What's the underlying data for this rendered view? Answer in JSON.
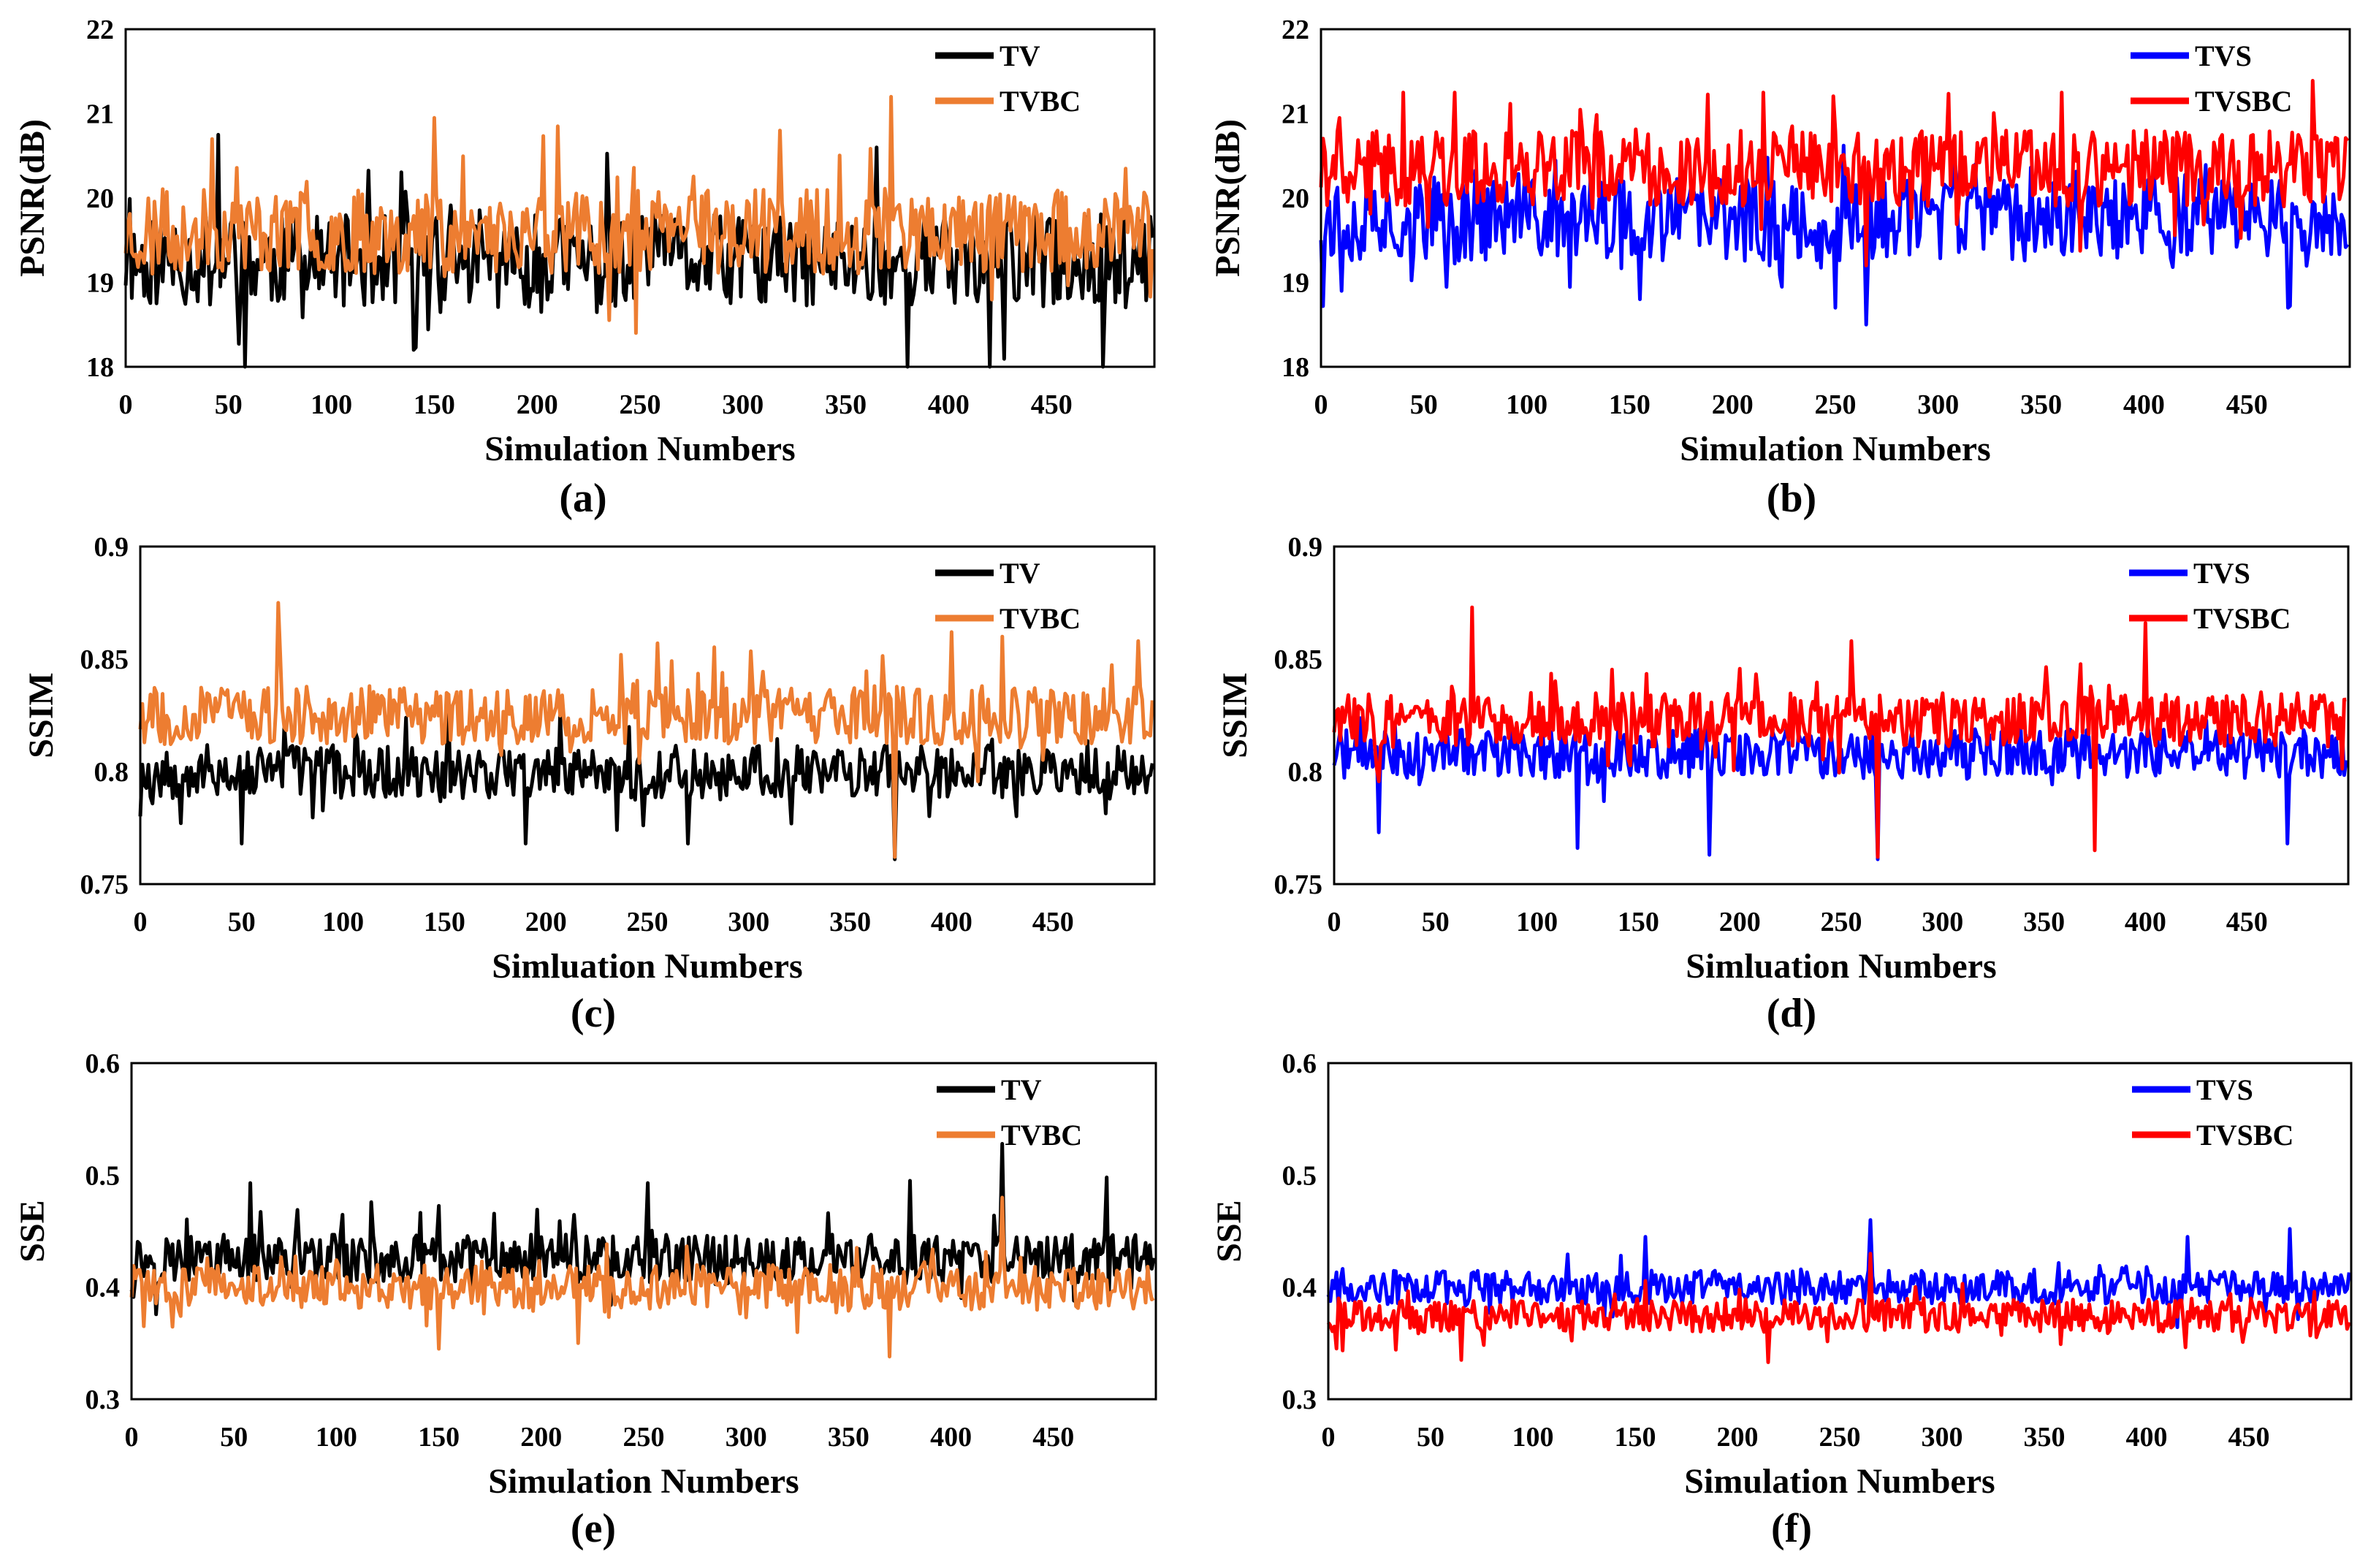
{
  "chart_data": [
    {
      "type": "line",
      "panel": "(a)",
      "xlabel": "Simulation  Numbers",
      "ylabel": "PSNR(dB)",
      "xlim": [
        0,
        500
      ],
      "ylim": [
        18,
        22
      ],
      "xticks": [
        0,
        50,
        100,
        150,
        200,
        250,
        300,
        350,
        400,
        450
      ],
      "yticks": [
        "18",
        "19",
        "20",
        "21",
        "22"
      ],
      "legend_position": "top-right",
      "grid": false,
      "series": [
        {
          "name": "TV",
          "color": "#000000",
          "base": 19.25,
          "amp": 0.55,
          "seed": 11,
          "spikes": [
            [
              45,
              20.75
            ],
            [
              58,
              18.0
            ],
            [
              140,
              18.2
            ],
            [
              365,
              20.6
            ],
            [
              380,
              18.0
            ],
            [
              420,
              18.0
            ],
            [
              475,
              18.0
            ]
          ]
        },
        {
          "name": "TVBC",
          "color": "#ED7D31",
          "base": 19.6,
          "amp": 0.5,
          "seed": 23,
          "spikes": [
            [
              42,
              20.7
            ],
            [
              150,
              20.95
            ],
            [
              210,
              20.85
            ],
            [
              372,
              21.2
            ],
            [
              318,
              20.8
            ],
            [
              248,
              18.4
            ]
          ]
        }
      ]
    },
    {
      "type": "line",
      "panel": "(b)",
      "xlabel": "Simulation  Numbers",
      "ylabel": "PSNR(dB)",
      "xlim": [
        0,
        500
      ],
      "ylim": [
        18,
        22
      ],
      "xticks": [
        0,
        50,
        100,
        150,
        200,
        250,
        300,
        350,
        400,
        450
      ],
      "yticks": [
        "18",
        "19",
        "20",
        "21",
        "22"
      ],
      "legend_position": "top-right",
      "grid": false,
      "series": [
        {
          "name": "TVS",
          "color": "#0000FF",
          "base": 19.75,
          "amp": 0.5,
          "seed": 37,
          "spikes": [
            [
              155,
              18.8
            ],
            [
              250,
              18.7
            ],
            [
              265,
              18.5
            ],
            [
              470,
              18.7
            ],
            [
              10,
              18.9
            ]
          ]
        },
        {
          "name": "TVSBC",
          "color": "#FF0000",
          "base": 20.35,
          "amp": 0.45,
          "seed": 41,
          "spikes": [
            [
              40,
              21.25
            ],
            [
              65,
              21.25
            ],
            [
              215,
              21.25
            ],
            [
              360,
              21.25
            ],
            [
              265,
              19.2
            ]
          ]
        }
      ]
    },
    {
      "type": "line",
      "panel": "(c)",
      "xlabel": "Simluation  Numbers",
      "ylabel": "SSIM",
      "xlim": [
        0,
        500
      ],
      "ylim": [
        0.75,
        0.9
      ],
      "xticks": [
        0,
        50,
        100,
        150,
        200,
        250,
        300,
        350,
        400,
        450
      ],
      "yticks": [
        "0.75",
        "0.8",
        "0.85",
        "0.9"
      ],
      "legend_position": "top-right",
      "grid": false,
      "series": [
        {
          "name": "TV",
          "color": "#000000",
          "base": 0.8,
          "amp": 0.012,
          "seed": 53,
          "spikes": [
            [
              50,
              0.768
            ],
            [
              270,
              0.768
            ],
            [
              372,
              0.761
            ],
            [
              190,
              0.768
            ],
            [
              235,
              0.774
            ]
          ]
        },
        {
          "name": "TVBC",
          "color": "#ED7D31",
          "base": 0.825,
          "amp": 0.013,
          "seed": 67,
          "spikes": [
            [
              68,
              0.875
            ],
            [
              255,
              0.857
            ],
            [
              400,
              0.862
            ],
            [
              425,
              0.86
            ],
            [
              492,
              0.858
            ],
            [
              372,
              0.762
            ]
          ]
        }
      ]
    },
    {
      "type": "line",
      "panel": "(d)",
      "xlabel": "Simluation  Numbers",
      "ylabel": "SSIM",
      "xlim": [
        0,
        500
      ],
      "ylim": [
        0.75,
        0.9
      ],
      "xticks": [
        0,
        50,
        100,
        150,
        200,
        250,
        300,
        350,
        400,
        450
      ],
      "yticks": [
        "0.75",
        "0.8",
        "0.85",
        "0.9"
      ],
      "legend_position": "top-right",
      "grid": false,
      "series": [
        {
          "name": "TVS",
          "color": "#0000FF",
          "base": 0.808,
          "amp": 0.011,
          "seed": 71,
          "spikes": [
            [
              185,
              0.763
            ],
            [
              268,
              0.761
            ],
            [
              470,
              0.768
            ],
            [
              22,
              0.773
            ],
            [
              120,
              0.766
            ]
          ]
        },
        {
          "name": "TVSBC",
          "color": "#FF0000",
          "base": 0.823,
          "amp": 0.012,
          "seed": 83,
          "spikes": [
            [
              68,
              0.873
            ],
            [
              400,
              0.866
            ],
            [
              255,
              0.858
            ],
            [
              375,
              0.765
            ],
            [
              268,
              0.762
            ]
          ]
        }
      ]
    },
    {
      "type": "line",
      "panel": "(e)",
      "xlabel": "Simulation  Numbers",
      "ylabel": "SSE",
      "xlim": [
        0,
        500
      ],
      "ylim": [
        0.3,
        0.6
      ],
      "xticks": [
        0,
        50,
        100,
        150,
        200,
        250,
        300,
        350,
        400,
        450
      ],
      "yticks": [
        "0.3",
        "0.4",
        "0.5",
        "0.6"
      ],
      "legend_position": "top-right",
      "grid": false,
      "series": [
        {
          "name": "TV",
          "color": "#000000",
          "base": 0.425,
          "amp": 0.022,
          "seed": 97,
          "spikes": [
            [
              58,
              0.493
            ],
            [
              252,
              0.493
            ],
            [
              425,
              0.528
            ],
            [
              380,
              0.495
            ],
            [
              476,
              0.498
            ]
          ]
        },
        {
          "name": "TVBC",
          "color": "#ED7D31",
          "base": 0.4,
          "amp": 0.02,
          "seed": 101,
          "spikes": [
            [
              370,
              0.338
            ],
            [
              150,
              0.345
            ],
            [
              218,
              0.35
            ],
            [
              425,
              0.48
            ]
          ]
        }
      ]
    },
    {
      "type": "line",
      "panel": "(f)",
      "xlabel": "Simulation  Numbers",
      "ylabel": "SSE",
      "xlim": [
        0,
        500
      ],
      "ylim": [
        0.3,
        0.6
      ],
      "xticks": [
        0,
        50,
        100,
        150,
        200,
        250,
        300,
        350,
        400,
        450
      ],
      "yticks": [
        "0.3",
        "0.4",
        "0.5",
        "0.6"
      ],
      "legend_position": "top-right",
      "grid": false,
      "series": [
        {
          "name": "TVS",
          "color": "#0000FF",
          "base": 0.4,
          "amp": 0.015,
          "seed": 107,
          "spikes": [
            [
              265,
              0.46
            ],
            [
              470,
              0.452
            ],
            [
              155,
              0.445
            ],
            [
              420,
              0.445
            ]
          ]
        },
        {
          "name": "TVSBC",
          "color": "#FF0000",
          "base": 0.375,
          "amp": 0.015,
          "seed": 113,
          "spikes": [
            [
              215,
              0.333
            ],
            [
              65,
              0.335
            ],
            [
              265,
              0.43
            ]
          ]
        }
      ]
    }
  ]
}
